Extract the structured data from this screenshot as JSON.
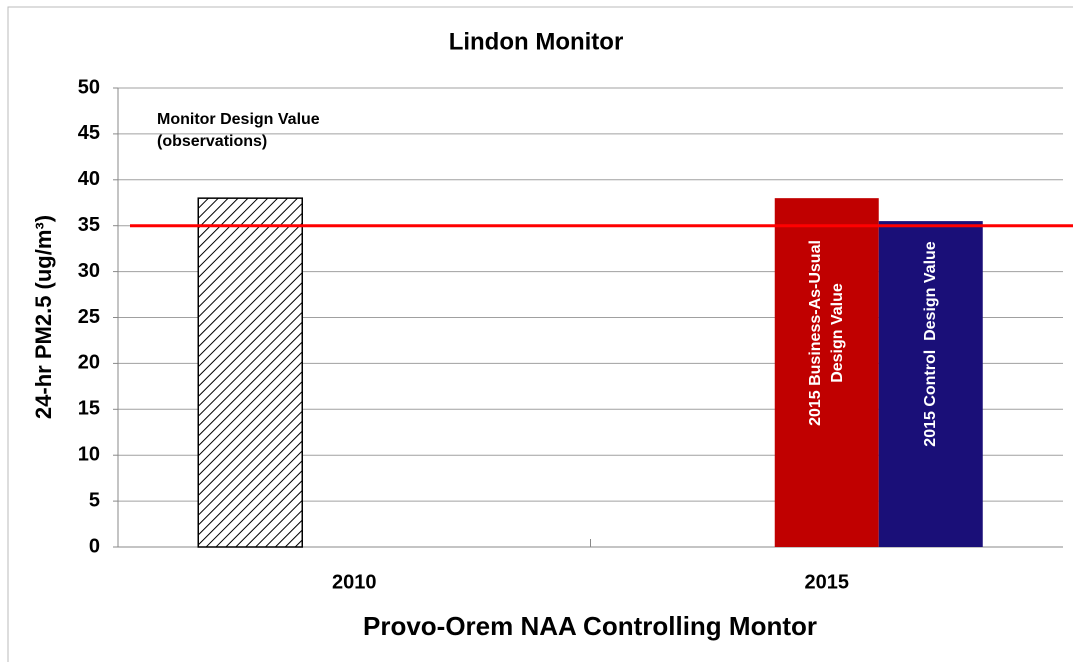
{
  "chart_data": {
    "type": "bar",
    "title": "Lindon Monitor",
    "xlabel": "Provo-Orem NAA Controlling Montor",
    "ylabel": "24-hr PM2.5 (ug/m³)",
    "categories": [
      "2010",
      "2015"
    ],
    "series": [
      {
        "name": "Monitor Design Value\n(observations)",
        "color": "#000000",
        "pattern": "hatch",
        "values": [
          38,
          null
        ]
      },
      {
        "name": "2015 Business-As-Usual\nDesign Value",
        "color": "#c00000",
        "values": [
          null,
          38
        ]
      },
      {
        "name": "2015 Control  Design Value",
        "color": "#1a0f78",
        "values": [
          null,
          35.5
        ]
      }
    ],
    "reference_line": {
      "value": 35,
      "color": "#ff0000"
    },
    "ylim": [
      0,
      50
    ],
    "yticks": [
      0,
      5,
      10,
      15,
      20,
      25,
      30,
      35,
      40,
      45,
      50
    ],
    "grid": true
  }
}
